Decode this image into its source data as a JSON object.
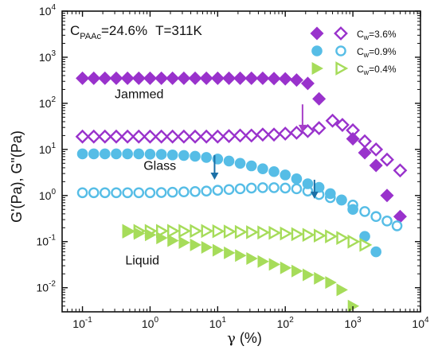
{
  "chart_data": {
    "type": "scatter",
    "title": "",
    "xlabel_main": "γ",
    "xlabel_unit": "(%)",
    "ylabel": "G'(Pa), G\"(Pa)",
    "xscale": "log",
    "yscale": "log",
    "xlim": [
      0.05,
      10000
    ],
    "ylim": [
      0.003,
      10000
    ],
    "x_ticks": [
      {
        "value": 0.1,
        "base": "10",
        "exp": "-1"
      },
      {
        "value": 1,
        "base": "10",
        "exp": "0"
      },
      {
        "value": 10,
        "base": "10",
        "exp": "1"
      },
      {
        "value": 100,
        "base": "10",
        "exp": "2"
      },
      {
        "value": 1000,
        "base": "10",
        "exp": "3"
      },
      {
        "value": 10000,
        "base": "10",
        "exp": "4"
      }
    ],
    "y_ticks": [
      {
        "value": 0.01,
        "base": "10",
        "exp": "-2"
      },
      {
        "value": 0.1,
        "base": "10",
        "exp": "-1"
      },
      {
        "value": 1,
        "base": "10",
        "exp": "0"
      },
      {
        "value": 10,
        "base": "10",
        "exp": "1"
      },
      {
        "value": 100,
        "base": "10",
        "exp": "2"
      },
      {
        "value": 1000,
        "base": "10",
        "exp": "3"
      },
      {
        "value": 10000,
        "base": "10",
        "exp": "4"
      }
    ],
    "grid": false,
    "legend_position": "top-right",
    "header": {
      "c_label": "C",
      "c_sub": "PAAc",
      "c_value": "=24.6%",
      "t_text": "T=311K"
    },
    "annotations": [
      {
        "text": "Jammed",
        "x": 0.3,
        "y": 130
      },
      {
        "text": "Glass",
        "x": 0.8,
        "y": 3.6
      },
      {
        "text": "Liquid",
        "x": 0.43,
        "y": 0.032
      }
    ],
    "arrows": [
      {
        "x": 180,
        "y_from": 95,
        "y_to": 24,
        "color": "#a640c8"
      },
      {
        "x": 9,
        "y_from": 7.5,
        "y_to": 2.2,
        "color": "#1b6fa6"
      },
      {
        "x": 270,
        "y_from": 2.2,
        "y_to": 0.85,
        "color": "#1b6fa6"
      }
    ],
    "legend_labels": [
      "C",
      "C",
      "C"
    ],
    "legend_subs": [
      "w",
      "w",
      "w"
    ],
    "legend_values": [
      "=3.6%",
      "=0.9%",
      "=0.4%"
    ],
    "series": [
      {
        "name": "G' Cw=3.6%",
        "marker": "diamond",
        "filled": true,
        "color": "#9932cc",
        "x": [
          0.1,
          0.147,
          0.215,
          0.316,
          0.464,
          0.681,
          1,
          1.47,
          2.15,
          3.16,
          4.64,
          6.81,
          10,
          14.7,
          21.5,
          31.6,
          46.4,
          68.1,
          100,
          147,
          215,
          316,
          1000,
          1500,
          2200,
          3200,
          5000
        ],
        "y": [
          350,
          350,
          350,
          350,
          350,
          350,
          350,
          350,
          350,
          350,
          350,
          350,
          350,
          350,
          350,
          350,
          350,
          345,
          340,
          320,
          270,
          125,
          17,
          8.5,
          4.5,
          1.0,
          0.35
        ]
      },
      {
        "name": "G\" Cw=3.6%",
        "marker": "diamond",
        "filled": false,
        "color": "#9932cc",
        "x": [
          0.1,
          0.147,
          0.215,
          0.316,
          0.464,
          0.681,
          1,
          1.47,
          2.15,
          3.16,
          4.64,
          6.81,
          10,
          14.7,
          21.5,
          31.6,
          46.4,
          68.1,
          100,
          147,
          215,
          316,
          500,
          700,
          1000,
          1500,
          2200,
          3200,
          5000
        ],
        "y": [
          19,
          19,
          19,
          19,
          19,
          19,
          19,
          19,
          19,
          19,
          19,
          19,
          19,
          19.5,
          20,
          20,
          21,
          21,
          22,
          23,
          25,
          29,
          42,
          34,
          26,
          15,
          10,
          6,
          3.5
        ]
      },
      {
        "name": "G' Cw=0.9%",
        "marker": "circle",
        "filled": true,
        "color": "#56bde6",
        "x": [
          0.1,
          0.147,
          0.215,
          0.316,
          0.464,
          0.681,
          1,
          1.47,
          2.15,
          3.16,
          4.64,
          6.81,
          10,
          14.7,
          21.5,
          31.6,
          46.4,
          68.1,
          100,
          147,
          215,
          316,
          464,
          681,
          1000,
          1500,
          2200
        ],
        "y": [
          8,
          8,
          8,
          8,
          8,
          8,
          7.9,
          7.8,
          7.6,
          7.4,
          7.1,
          6.7,
          6.2,
          5.6,
          5.0,
          4.4,
          3.8,
          3.3,
          2.8,
          2.3,
          1.8,
          1.5,
          1.1,
          0.8,
          0.5,
          0.13,
          0.06
        ]
      },
      {
        "name": "G\" Cw=0.9%",
        "marker": "circle",
        "filled": false,
        "color": "#56bde6",
        "x": [
          0.1,
          0.147,
          0.215,
          0.316,
          0.464,
          0.681,
          1,
          1.47,
          2.15,
          3.16,
          4.64,
          6.81,
          10,
          14.7,
          21.5,
          31.6,
          46.4,
          68.1,
          100,
          147,
          215,
          316,
          464,
          681,
          1000,
          1500,
          2200,
          3200,
          4500
        ],
        "y": [
          1.15,
          1.15,
          1.15,
          1.15,
          1.15,
          1.15,
          1.15,
          1.16,
          1.18,
          1.2,
          1.22,
          1.25,
          1.3,
          1.35,
          1.4,
          1.45,
          1.48,
          1.48,
          1.45,
          1.4,
          1.25,
          1.05,
          0.9,
          0.8,
          0.62,
          0.45,
          0.35,
          0.28,
          0.22
        ]
      },
      {
        "name": "G' Cw=0.4%",
        "marker": "triangle",
        "filled": true,
        "color": "#a6dc5a",
        "x": [
          0.464,
          0.681,
          1,
          1.47,
          2.15,
          3.16,
          4.64,
          6.81,
          10,
          14.7,
          21.5,
          31.6,
          46.4,
          68.1,
          100,
          147,
          215,
          316,
          464,
          681,
          1000
        ],
        "y": [
          0.16,
          0.15,
          0.14,
          0.12,
          0.105,
          0.095,
          0.085,
          0.075,
          0.065,
          0.057,
          0.05,
          0.043,
          0.037,
          0.032,
          0.027,
          0.023,
          0.019,
          0.016,
          0.013,
          0.009,
          0.004
        ]
      },
      {
        "name": "G\" Cw=0.4%",
        "marker": "triangle",
        "filled": false,
        "color": "#a6dc5a",
        "x": [
          0.464,
          0.681,
          1,
          1.47,
          2.15,
          3.16,
          4.64,
          6.81,
          10,
          14.7,
          21.5,
          31.6,
          46.4,
          68.1,
          100,
          147,
          215,
          316,
          464,
          681,
          1000,
          1500
        ],
        "y": [
          0.17,
          0.17,
          0.17,
          0.17,
          0.17,
          0.17,
          0.17,
          0.17,
          0.168,
          0.165,
          0.162,
          0.16,
          0.158,
          0.155,
          0.15,
          0.145,
          0.14,
          0.135,
          0.13,
          0.12,
          0.1,
          0.085
        ]
      }
    ]
  }
}
